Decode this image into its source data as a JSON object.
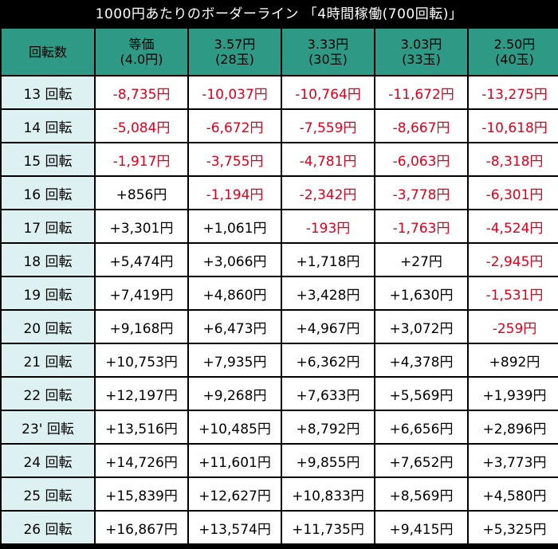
{
  "title": "1000円あたりのボーダーライン 「4時間稼働(700回転)」",
  "header": {
    "rotation_label": "回転数",
    "columns": [
      {
        "line1": "等価",
        "line2": "(4.0円)"
      },
      {
        "line1": "3.57円",
        "line2": "(28玉)"
      },
      {
        "line1": "3.33円",
        "line2": "(30玉)"
      },
      {
        "line1": "3.03円",
        "line2": "(33玉)"
      },
      {
        "line1": "2.50円",
        "line2": "(40玉)"
      }
    ]
  },
  "rows": [
    {
      "label": "13 回転",
      "values": [
        "-8,735円",
        "-10,037円",
        "-10,764円",
        "-11,672円",
        "-13,275円"
      ]
    },
    {
      "label": "14 回転",
      "values": [
        "-5,084円",
        "-6,672円",
        "-7,559円",
        "-8,667円",
        "-10,618円"
      ]
    },
    {
      "label": "15 回転",
      "values": [
        "-1,917円",
        "-3,755円",
        "-4,781円",
        "-6,063円",
        "-8,318円"
      ]
    },
    {
      "label": "16 回転",
      "values": [
        "+856円",
        "-1,194円",
        "-2,342円",
        "-3,778円",
        "-6,301円"
      ]
    },
    {
      "label": "17 回転",
      "values": [
        "+3,301円",
        "+1,061円",
        "-193円",
        "-1,763円",
        "-4,524円"
      ]
    },
    {
      "label": "18 回転",
      "values": [
        "+5,474円",
        "+3,066円",
        "+1,718円",
        "+27円",
        "-2,945円"
      ]
    },
    {
      "label": "19 回転",
      "values": [
        "+7,419円",
        "+4,860円",
        "+3,428円",
        "+1,630円",
        "-1,531円"
      ]
    },
    {
      "label": "20 回転",
      "values": [
        "+9,168円",
        "+6,473円",
        "+4,967円",
        "+3,072円",
        "-259円"
      ]
    },
    {
      "label": "21 回転",
      "values": [
        "+10,753円",
        "+7,935円",
        "+6,362円",
        "+4,378円",
        "+892円"
      ]
    },
    {
      "label": "22 回転",
      "values": [
        "+12,197円",
        "+9,268円",
        "+7,633円",
        "+5,569円",
        "+1,939円"
      ]
    },
    {
      "label": "23' 回転",
      "values": [
        "+13,516円",
        "+10,485円",
        "+8,792円",
        "+6,656円",
        "+2,896円"
      ]
    },
    {
      "label": "24 回転",
      "values": [
        "+14,726円",
        "+11,601円",
        "+9,855円",
        "+7,652円",
        "+3,773円"
      ]
    },
    {
      "label": "25 回転",
      "values": [
        "+15,839円",
        "+12,627円",
        "+10,833円",
        "+8,569円",
        "+4,580円"
      ]
    },
    {
      "label": "26 回転",
      "values": [
        "+16,867円",
        "+13,574円",
        "+11,735円",
        "+9,415円",
        "+5,325円"
      ]
    }
  ],
  "colors": {
    "header_bg": "#2e9a86",
    "label_bg": "#ddf0f2",
    "negative": "#e0001b",
    "positive": "#000000",
    "border": "#000000"
  }
}
